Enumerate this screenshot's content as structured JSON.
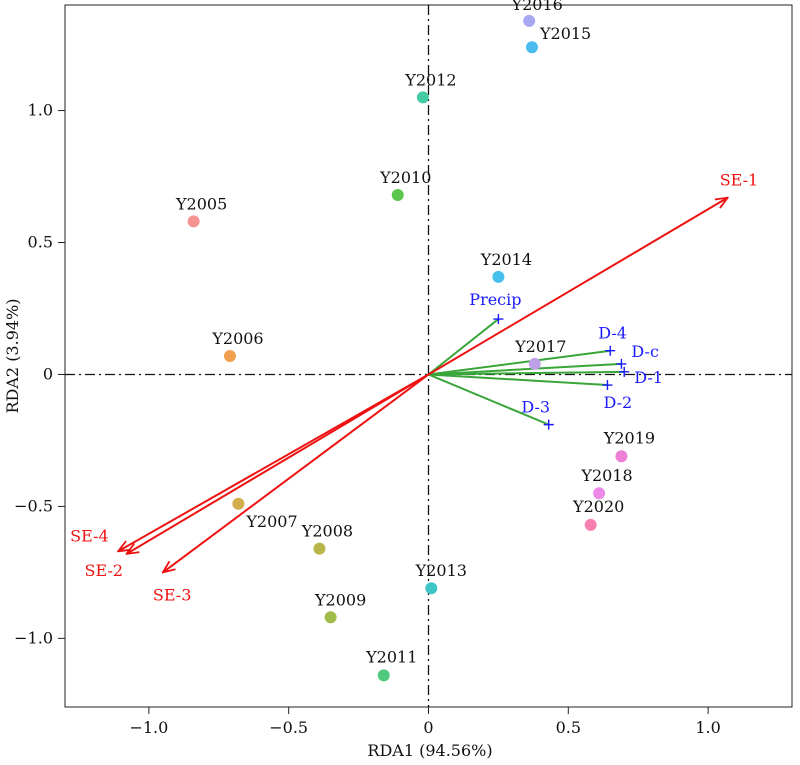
{
  "chart_data": {
    "type": "scatter",
    "xlabel": "RDA1 (94.56%)",
    "ylabel": "RDA2 (3.94%)",
    "xlim": [
      -1.3,
      1.3
    ],
    "ylim": [
      -1.26,
      1.4
    ],
    "x_ticks": [
      -1.0,
      -0.5,
      0,
      0.5,
      1.0
    ],
    "x_tick_labels": [
      "−1.0",
      "−0.5",
      "0",
      "0.5",
      "1.0"
    ],
    "y_ticks": [
      -1.0,
      -0.5,
      0,
      0.5,
      1.0
    ],
    "y_tick_labels": [
      "−1.0",
      "−0.5",
      "0",
      "0.5",
      "1.0"
    ],
    "grid": false,
    "reference_lines": {
      "x": 0,
      "y": 0,
      "style": "dash-dot"
    },
    "sites": [
      {
        "label": "Y2005",
        "x": -0.84,
        "y": 0.58,
        "color": "#f4938f"
      },
      {
        "label": "Y2006",
        "x": -0.71,
        "y": 0.07,
        "color": "#f0a04e"
      },
      {
        "label": "Y2007",
        "x": -0.68,
        "y": -0.49,
        "color": "#d3ad4c"
      },
      {
        "label": "Y2008",
        "x": -0.39,
        "y": -0.66,
        "color": "#b8b649"
      },
      {
        "label": "Y2009",
        "x": -0.35,
        "y": -0.92,
        "color": "#9fbd48"
      },
      {
        "label": "Y2010",
        "x": -0.11,
        "y": 0.68,
        "color": "#5cc54d"
      },
      {
        "label": "Y2011",
        "x": -0.16,
        "y": -1.14,
        "color": "#4fc97c"
      },
      {
        "label": "Y2012",
        "x": -0.02,
        "y": 1.05,
        "color": "#45cba4"
      },
      {
        "label": "Y2013",
        "x": 0.01,
        "y": -0.81,
        "color": "#3ec5c7"
      },
      {
        "label": "Y2014",
        "x": 0.25,
        "y": 0.37,
        "color": "#48c0ec"
      },
      {
        "label": "Y2015",
        "x": 0.37,
        "y": 1.24,
        "color": "#4cbcf0"
      },
      {
        "label": "Y2016",
        "x": 0.36,
        "y": 1.34,
        "color": "#a7a7f2"
      },
      {
        "label": "Y2017",
        "x": 0.38,
        "y": 0.04,
        "color": "#c09fe9"
      },
      {
        "label": "Y2018",
        "x": 0.61,
        "y": -0.45,
        "color": "#ec88e8"
      },
      {
        "label": "Y2019",
        "x": 0.69,
        "y": -0.31,
        "color": "#ee7fd7"
      },
      {
        "label": "Y2020",
        "x": 0.58,
        "y": -0.57,
        "color": "#f67fb0"
      }
    ],
    "environment_vectors": [
      {
        "label": "Precip",
        "x": 0.25,
        "y": 0.21
      },
      {
        "label": "D-4",
        "x": 0.65,
        "y": 0.09
      },
      {
        "label": "D-c",
        "x": 0.69,
        "y": 0.04
      },
      {
        "label": "D-1",
        "x": 0.7,
        "y": 0.01
      },
      {
        "label": "D-2",
        "x": 0.64,
        "y": -0.04
      },
      {
        "label": "D-3",
        "x": 0.43,
        "y": -0.19
      }
    ],
    "environment_color": "#3aa63a",
    "environment_label_color": "#1a1aff",
    "response_vectors": [
      {
        "label": "SE-1",
        "x": 1.07,
        "y": 0.67
      },
      {
        "label": "SE-4",
        "x": -1.11,
        "y": -0.67
      },
      {
        "label": "SE-2",
        "x": -1.08,
        "y": -0.68
      },
      {
        "label": "SE-3",
        "x": -0.95,
        "y": -0.75
      }
    ],
    "response_color": "#ee1111"
  }
}
